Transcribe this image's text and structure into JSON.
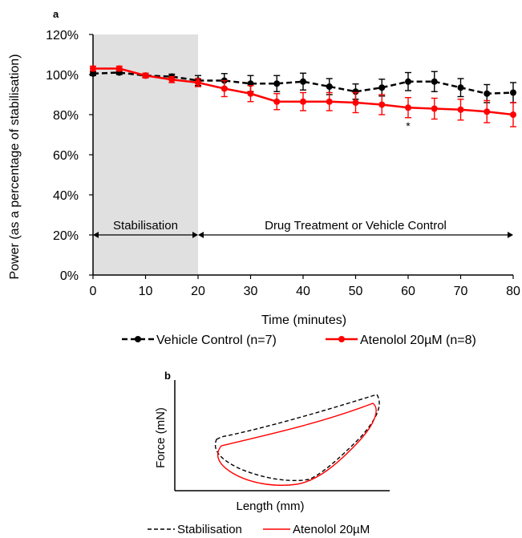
{
  "chart_data": [
    {
      "panel": "a",
      "type": "line",
      "xlabel": "Time (minutes)",
      "ylabel": "Power (as a percentage of stabilisation)",
      "xlim": [
        0,
        80
      ],
      "ylim": [
        0,
        120
      ],
      "x_ticks": [
        "0",
        "10",
        "20",
        "30",
        "40",
        "50",
        "60",
        "70",
        "80"
      ],
      "y_ticks": [
        "0%",
        "20%",
        "40%",
        "60%",
        "80%",
        "100%",
        "120%"
      ],
      "x": [
        0,
        5,
        10,
        15,
        20,
        25,
        30,
        35,
        40,
        45,
        50,
        55,
        60,
        65,
        70,
        75,
        80
      ],
      "series": [
        {
          "name": "Vehicle Control (n=7)",
          "color": "#000000",
          "dash": true,
          "values": [
            100.5,
            101,
            99.5,
            99,
            97,
            97,
            95.5,
            95.5,
            96.5,
            94,
            91.5,
            93.5,
            96.5,
            96.5,
            93.5,
            90.5,
            91
          ],
          "errors": [
            1,
            1,
            1,
            1.2,
            2.5,
            3.5,
            4,
            4,
            4.2,
            4,
            3.8,
            4.2,
            4.5,
            5,
            4.5,
            4.5,
            5
          ]
        },
        {
          "name": "Atenolol 20µM (n=8)",
          "color": "#ff0000",
          "dash": false,
          "values": [
            103,
            103,
            99.5,
            97.5,
            96,
            93,
            90.5,
            86.5,
            86.5,
            86.5,
            86,
            85,
            83.5,
            83,
            82.5,
            81.5,
            80
          ],
          "errors": [
            1.2,
            1.2,
            1.2,
            1.5,
            2,
            4,
            4,
            4,
            4.5,
            4.5,
            5,
            5,
            5,
            5.2,
            5.2,
            5.5,
            6
          ]
        }
      ],
      "annotations": [
        {
          "label": "Stabilisation",
          "from": 0,
          "to": 20,
          "y": 20
        },
        {
          "label": "Drug Treatment or Vehicle Control",
          "from": 20,
          "to": 80,
          "y": 20
        }
      ],
      "significance": {
        "label": "*",
        "x": 60
      },
      "shaded_region": [
        0,
        20
      ],
      "legend_position": "bottom"
    },
    {
      "panel": "b",
      "type": "line",
      "xlabel": "Length (mm)",
      "ylabel": "Force (mN)",
      "series": [
        {
          "name": "Stabilisation",
          "color": "#000000",
          "dash": true
        },
        {
          "name": "Atenolol 20µM",
          "color": "#ff0000",
          "dash": false
        }
      ],
      "legend_position": "bottom"
    }
  ]
}
